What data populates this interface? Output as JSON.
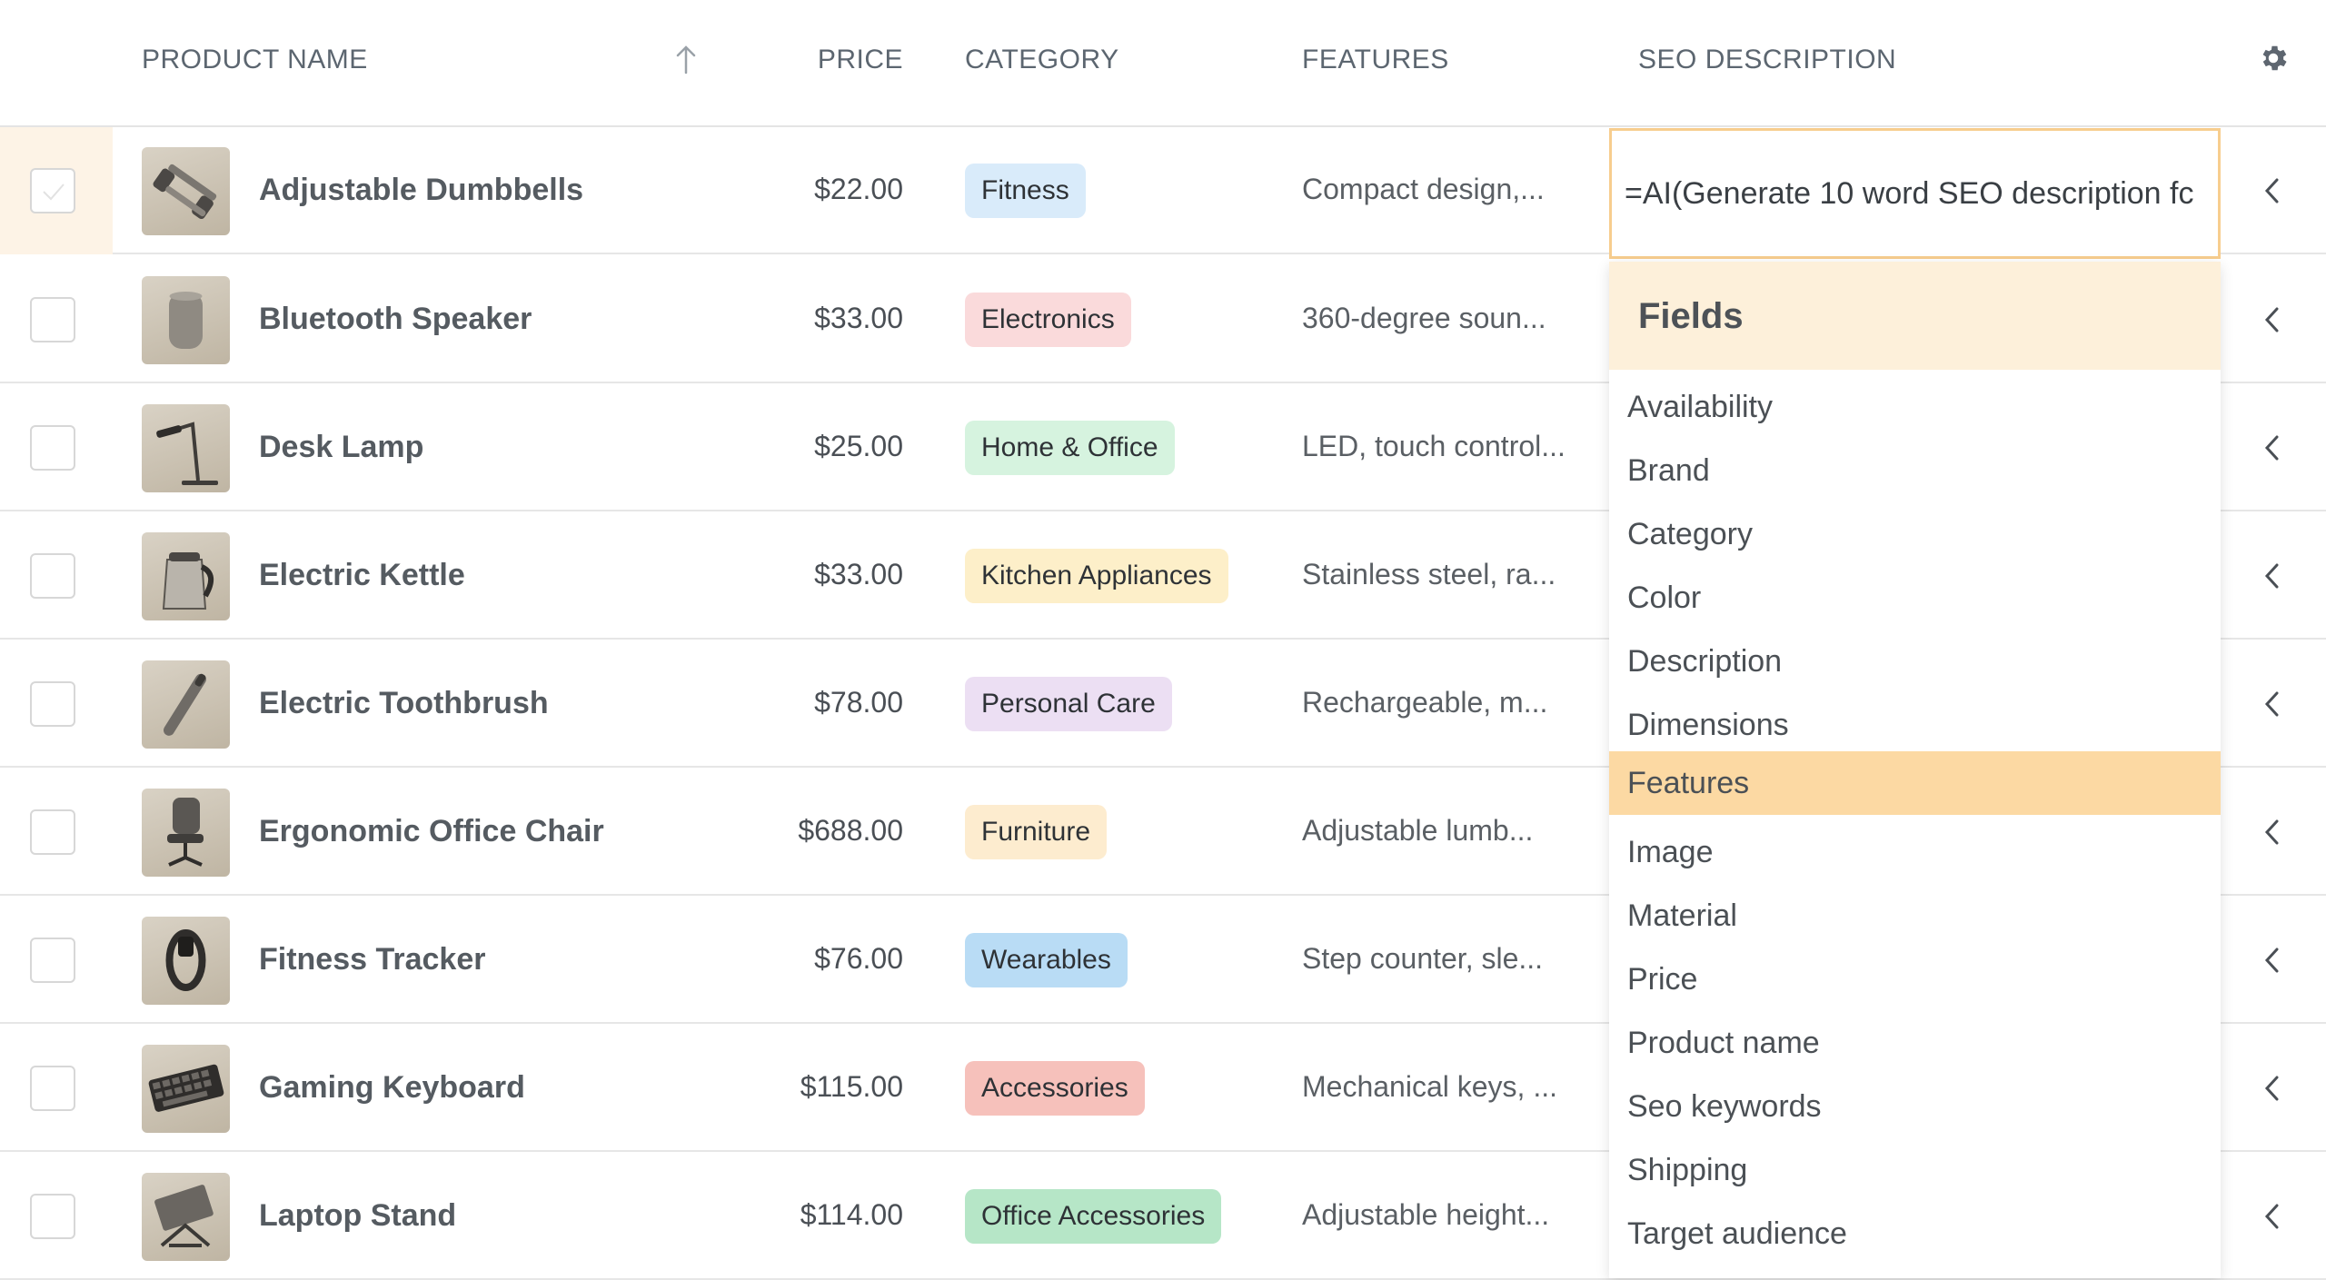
{
  "header": {
    "product_name": "PRODUCT NAME",
    "price": "PRICE",
    "category": "CATEGORY",
    "features": "FEATURES",
    "seo_description": "SEO DESCRIPTION",
    "sort_icon": "arrow-up-icon",
    "settings_icon": "gear-icon"
  },
  "rows": [
    {
      "name": "Adjustable Dumbbells",
      "price": "$22.00",
      "category": "Fitness",
      "category_color": "#d9ebfa",
      "features": "Compact design,...",
      "thumb_icon": "dumbbell-icon"
    },
    {
      "name": "Bluetooth Speaker",
      "price": "$33.00",
      "category": "Electronics",
      "category_color": "#fadadb",
      "features": "360-degree soun...",
      "thumb_icon": "speaker-icon"
    },
    {
      "name": "Desk Lamp",
      "price": "$25.00",
      "category": "Home & Office",
      "category_color": "#d6f3df",
      "features": "LED, touch control...",
      "thumb_icon": "lamp-icon"
    },
    {
      "name": "Electric Kettle",
      "price": "$33.00",
      "category": "Kitchen Appliances",
      "category_color": "#fdefc9",
      "features": "Stainless steel, ra...",
      "thumb_icon": "kettle-icon"
    },
    {
      "name": "Electric Toothbrush",
      "price": "$78.00",
      "category": "Personal Care",
      "category_color": "#ecdff3",
      "features": "Rechargeable, m...",
      "thumb_icon": "toothbrush-icon"
    },
    {
      "name": "Ergonomic Office Chair",
      "price": "$688.00",
      "category": "Furniture",
      "category_color": "#fdeccf",
      "features": "Adjustable lumb...",
      "thumb_icon": "chair-icon"
    },
    {
      "name": "Fitness Tracker",
      "price": "$76.00",
      "category": "Wearables",
      "category_color": "#b9dcf5",
      "features": "Step counter, sle...",
      "thumb_icon": "tracker-icon"
    },
    {
      "name": "Gaming Keyboard",
      "price": "$115.00",
      "category": "Accessories",
      "category_color": "#f6c1bb",
      "features": "Mechanical keys, ...",
      "thumb_icon": "keyboard-icon"
    },
    {
      "name": "Laptop Stand",
      "price": "$114.00",
      "category": "Office Accessories",
      "category_color": "#b6e6c7",
      "features": "Adjustable height...",
      "thumb_icon": "laptop-stand-icon"
    }
  ],
  "seo_cell": {
    "value": "=AI(Generate 10 word SEO description fc"
  },
  "fields_dropdown": {
    "title": "Fields",
    "items": [
      "Availability",
      "Brand",
      "Category",
      "Color",
      "Description",
      "Dimensions",
      "Features",
      "Image",
      "Material",
      "Price",
      "Product name",
      "Seo keywords",
      "Shipping",
      "Target audience"
    ],
    "highlighted": "Features"
  },
  "colors": {
    "accent": "#f7cd8e",
    "highlight": "#fcd9a3",
    "dropdown_header": "#fdf0da",
    "selected_row": "#fdf3e6"
  }
}
